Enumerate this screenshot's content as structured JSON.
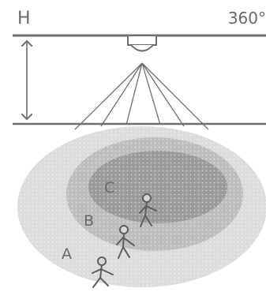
{
  "diagram": {
    "height_label": "H",
    "angle_label": "360°",
    "zones": {
      "outer": "A",
      "middle": "B",
      "inner": "C"
    },
    "colors": {
      "line": "#6e6e6e",
      "zone_outer": "#dcdcdc",
      "zone_middle": "#bdbdbd",
      "zone_inner": "#9a9a9a",
      "dots": "#ffffff"
    },
    "icons": [
      "ceiling-sensor-icon",
      "person-icon"
    ]
  }
}
